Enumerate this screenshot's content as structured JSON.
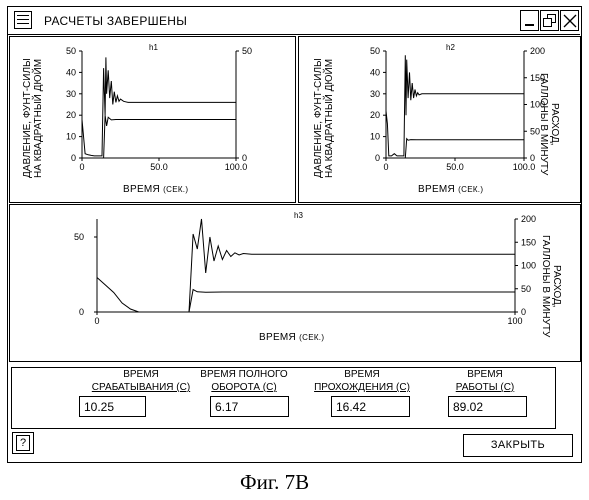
{
  "window": {
    "title": "РАСЧЕТЫ ЗАВЕРШЕНЫ",
    "controls": [
      "system-menu",
      "minimize",
      "restore",
      "close"
    ]
  },
  "plots": {
    "h1": {
      "name": "h1",
      "ylabel_left": [
        "ДАВЛЕНИЕ, ФУНТ-СИЛЫ",
        "НА КВАДРАТНЫЙ ДЮЙМ"
      ],
      "xlabel": "ВРЕМЯ",
      "xlabel_unit": "(СЕК.)",
      "x_ticks": [
        "0",
        "50.0",
        "100.0"
      ],
      "y_ticks_left": [
        "50",
        "40",
        "30",
        "20",
        "10",
        "0"
      ],
      "y_ticks_right": [
        "50",
        "0"
      ]
    },
    "h2": {
      "name": "h2",
      "ylabel_left": [
        "ДАВЛЕНИЕ, ФУНТ-СИЛЫ",
        "НА КВАДРАТНЫЙ ДЮЙМ"
      ],
      "ylabel_right": [
        "РАСХОД,",
        "ГАЛЛОНЫ В МИНУТУ"
      ],
      "xlabel": "ВРЕМЯ",
      "xlabel_unit": "(СЕК.)",
      "x_ticks": [
        "0",
        "50.0",
        "100.0"
      ],
      "y_ticks_left": [
        "50",
        "40",
        "30",
        "20",
        "10",
        "0"
      ],
      "y_ticks_right": [
        "200",
        "150",
        "100",
        "50",
        "0"
      ]
    },
    "h3": {
      "name": "h3",
      "ylabel_right": [
        "РАСХОД,",
        "ГАЛЛОНЫ В МИНУТУ"
      ],
      "xlabel": "ВРЕМЯ",
      "xlabel_unit": "(СЕК.)",
      "x_ticks": [
        "0",
        "100"
      ],
      "y_ticks_left": [
        "50",
        "0"
      ],
      "y_ticks_right": [
        "200",
        "150",
        "100",
        "50",
        "0"
      ]
    }
  },
  "results": {
    "response_time": {
      "label": [
        "ВРЕМЯ",
        "СРАБАТЫВАНИЯ (С)"
      ],
      "value": "10.25"
    },
    "full_turn_time": {
      "label": [
        "ВРЕМЯ ПОЛНОГО",
        "ОБОРОТА (С)"
      ],
      "value": "6.17"
    },
    "pass_time": {
      "label": [
        "ВРЕМЯ",
        "ПРОХОЖДЕНИЯ (С)"
      ],
      "value": "16.42"
    },
    "work_time": {
      "label": [
        "ВРЕМЯ",
        "РАБОТЫ (С)"
      ],
      "value": "89.02"
    }
  },
  "footer": {
    "help_icon": "question-mark-icon",
    "close_label": "ЗАКРЫТЬ"
  },
  "caption": "Фиг. 7В",
  "chart_data": [
    {
      "type": "line",
      "title": "h1",
      "xlabel": "ВРЕМЯ (СЕК.)",
      "ylabel": "ДАВЛЕНИЕ, ФУНТ-СИЛЫ НА КВАДРАТНЫЙ ДЮЙМ",
      "xlim": [
        0,
        100
      ],
      "ylim": [
        0,
        50
      ],
      "x_ticks": [
        0,
        50,
        100
      ],
      "series": [
        {
          "x": [
            0,
            2,
            4,
            6,
            8,
            10,
            13,
            14,
            15,
            15.5,
            16,
            17,
            18,
            19,
            20,
            21,
            22,
            23,
            24,
            25,
            27,
            30,
            40,
            60,
            80,
            100
          ],
          "y": [
            18,
            2,
            1.5,
            1.2,
            1,
            1,
            1,
            42,
            20,
            47,
            30,
            41,
            28,
            36,
            25,
            31,
            26,
            29,
            26.5,
            27.5,
            26.5,
            26,
            26,
            26,
            26,
            26
          ]
        },
        {
          "x": [
            14,
            15,
            16,
            17,
            19,
            22,
            30,
            60,
            100
          ],
          "y": [
            0,
            20,
            15,
            19,
            17.8,
            18,
            18,
            18,
            18
          ]
        }
      ]
    },
    {
      "type": "line",
      "title": "h2",
      "xlabel": "ВРЕМЯ (СЕК.)",
      "ylabel": "ДАВЛЕНИЕ, ФУНТ-СИЛЫ НА КВАДРАТНЫЙ ДЮЙМ",
      "y2label": "РАСХОД, ГАЛЛОНЫ В МИНУТУ",
      "xlim": [
        0,
        100
      ],
      "ylim": [
        0,
        50
      ],
      "y2lim": [
        0,
        200
      ],
      "x_ticks": [
        0,
        50,
        100
      ],
      "series": [
        {
          "x": [
            0,
            1,
            2,
            4,
            6,
            8,
            10,
            13,
            14,
            14.5,
            15,
            16,
            17,
            18,
            19,
            20,
            21,
            22,
            23,
            24,
            26,
            30,
            50,
            80,
            100
          ],
          "y": [
            22,
            16,
            1,
            1,
            2,
            1,
            1,
            1,
            48,
            20,
            46,
            28,
            40,
            27,
            35,
            28,
            32,
            29,
            30.5,
            29.5,
            30,
            30,
            30,
            30,
            30
          ]
        },
        {
          "x": [
            14,
            15,
            16,
            18,
            22,
            30,
            60,
            100
          ],
          "y": [
            0,
            9,
            8.3,
            8.6,
            8.5,
            8.5,
            8.5,
            8.5
          ]
        }
      ]
    },
    {
      "type": "line",
      "title": "h3",
      "xlabel": "ВРЕМЯ (СЕК.)",
      "y2label": "РАСХОД, ГАЛЛОНЫ В МИНУТУ",
      "xlim": [
        0,
        100
      ],
      "ylim": [
        0,
        62
      ],
      "y2lim": [
        0,
        200
      ],
      "x_ticks": [
        0,
        100
      ],
      "series": [
        {
          "x": [
            0,
            2,
            4,
            6,
            8,
            10,
            12,
            15,
            18,
            20,
            22,
            23,
            24,
            25,
            26,
            27,
            28,
            29,
            30,
            31,
            32,
            33,
            34,
            35,
            37,
            40,
            60,
            80,
            100
          ],
          "y": [
            23,
            18,
            13,
            6,
            2,
            0,
            0,
            0,
            0,
            0,
            0,
            52,
            42,
            62,
            26,
            50,
            34,
            44,
            35,
            41,
            37,
            39.5,
            38,
            39,
            38.5,
            38.5,
            38.5,
            38.5,
            38.5
          ]
        },
        {
          "x": [
            22,
            23,
            24,
            26,
            30,
            40,
            60,
            100
          ],
          "y": [
            0,
            15,
            13.5,
            13.2,
            13.3,
            13.3,
            13.3,
            13.3
          ]
        }
      ]
    }
  ]
}
